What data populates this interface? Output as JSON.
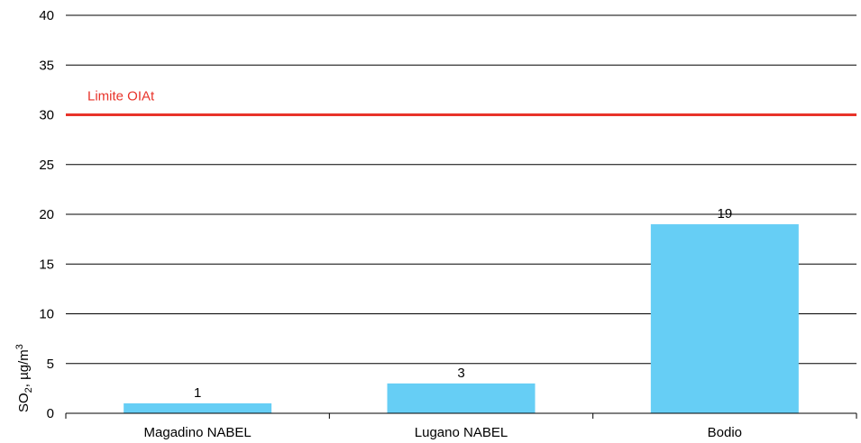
{
  "chart_data": {
    "type": "bar",
    "categories": [
      "Magadino NABEL",
      "Lugano NABEL",
      "Bodio"
    ],
    "values": [
      1,
      3,
      19
    ],
    "data_labels": [
      "1",
      "3",
      "19"
    ],
    "ylabel_main": "SO",
    "ylabel_sub": "2",
    "ylabel_mid": ", µg/m",
    "ylabel_sup": "3",
    "ylim": [
      0,
      40
    ],
    "yticks": [
      0,
      5,
      10,
      15,
      20,
      25,
      30,
      35,
      40
    ],
    "grid": true,
    "limit": {
      "label": "Limite OIAt",
      "value": 30,
      "color": "#e8332a"
    },
    "bar_color": "#66cef5"
  }
}
